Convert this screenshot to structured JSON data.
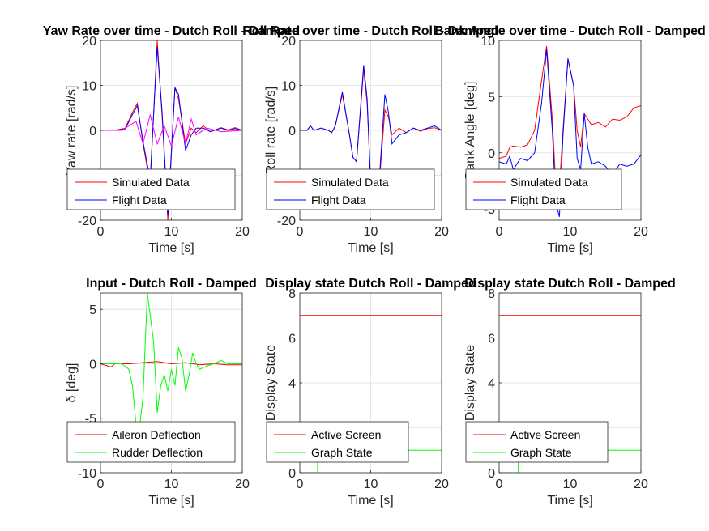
{
  "chart_data": [
    {
      "type": "line",
      "title": "Yaw Rate over time - Dutch Roll - Damped",
      "xlabel": "Time [s]",
      "ylabel": "Yaw rate [rad/s]",
      "xlim": [
        0,
        20
      ],
      "ylim": [
        -20,
        20
      ],
      "xticks": [
        0,
        10,
        20
      ],
      "yticks": [
        -20,
        -10,
        0,
        10,
        20
      ],
      "grid": true,
      "legend": {
        "position": "bottom",
        "entries": [
          "Simulated Data",
          "Flight Data"
        ]
      },
      "series": [
        {
          "name": "Simulated Data",
          "color": "#ff0000",
          "x": [
            0,
            2,
            3.5,
            4.5,
            5.2,
            6,
            7,
            8,
            8.7,
            9.5,
            10.5,
            11,
            12,
            12.8,
            13.5,
            14.5,
            15.5,
            17,
            18,
            19,
            20
          ],
          "y": [
            0,
            0,
            0.5,
            4,
            6,
            -3,
            -12,
            20,
            3,
            -20,
            9.5,
            7,
            -3,
            0.5,
            -0.5,
            1,
            -0.3,
            0.6,
            0.1,
            0.6,
            0
          ]
        },
        {
          "name": "Flight Data",
          "color": "#0000ff",
          "x": [
            0,
            2,
            3.5,
            4.5,
            5.2,
            6,
            7,
            8,
            8.7,
            9.5,
            10.5,
            11,
            12,
            12.8,
            13.5,
            14.5,
            15.5,
            17,
            18,
            19,
            20
          ],
          "y": [
            0,
            0,
            0.3,
            3.5,
            5.5,
            -2.5,
            -11,
            18.5,
            4,
            -19,
            9.5,
            8,
            -4.5,
            -1,
            0.5,
            0.5,
            -0.3,
            0.5,
            0,
            0.4,
            0
          ]
        },
        {
          "name": "",
          "color": "#ff00ff",
          "x": [
            0,
            3,
            4,
            5,
            6,
            7,
            8,
            9,
            10,
            11,
            12,
            12.8,
            13.5,
            15,
            17,
            20
          ],
          "y": [
            0,
            0,
            1,
            2,
            -3,
            3.5,
            -3,
            1,
            -3.5,
            3,
            -3,
            2.5,
            -1,
            0.5,
            -0.3,
            0
          ]
        }
      ]
    },
    {
      "type": "line",
      "title": "Roll Rate over time - Dutch Roll - Damped",
      "xlabel": "Time [s]",
      "ylabel": "Roll rate [rad/s]",
      "xlim": [
        0,
        20
      ],
      "ylim": [
        -20,
        20
      ],
      "xticks": [
        0,
        10,
        20
      ],
      "yticks": [
        -20,
        -10,
        0,
        10,
        20
      ],
      "grid": true,
      "legend": {
        "position": "bottom",
        "entries": [
          "Simulated Data",
          "Flight Data"
        ]
      },
      "series": [
        {
          "name": "Simulated Data",
          "color": "#ff0000",
          "x": [
            0,
            1,
            1.5,
            2,
            3,
            4,
            4.5,
            5,
            6,
            7,
            7.5,
            8,
            9,
            9.5,
            10,
            11,
            12,
            12.5,
            13,
            14,
            15,
            16,
            17,
            18,
            19,
            20
          ],
          "y": [
            0,
            0,
            1,
            0,
            0.5,
            0,
            -0.5,
            1,
            8,
            -1,
            -6,
            -7,
            13.5,
            6,
            -12,
            -16,
            4.5,
            3,
            -1,
            0.5,
            -0.5,
            0.5,
            -0.2,
            0.4,
            0.6,
            0
          ]
        },
        {
          "name": "Flight Data",
          "color": "#0000ff",
          "x": [
            0,
            1,
            1.5,
            2,
            3,
            4,
            4.5,
            5,
            6,
            7,
            7.5,
            8,
            9,
            9.5,
            10,
            11,
            12,
            12.5,
            13,
            14,
            15,
            16,
            17,
            18,
            19,
            20
          ],
          "y": [
            0,
            0,
            1,
            0,
            0.5,
            0,
            -0.5,
            1,
            8.5,
            -1,
            -6,
            -7,
            14.5,
            7,
            -12,
            -16,
            8,
            4,
            -3,
            -1,
            -0.5,
            0.5,
            0,
            0.5,
            1,
            0
          ]
        }
      ]
    },
    {
      "type": "line",
      "title": "Bank Angle over time - Dutch Roll - Damped",
      "xlabel": "Time [s]",
      "ylabel": "Bank Angle [deg]",
      "xlim": [
        0,
        20
      ],
      "ylim": [
        -6,
        10
      ],
      "xticks": [
        0,
        10,
        20
      ],
      "yticks": [
        -5,
        0,
        5,
        10
      ],
      "grid": true,
      "legend": {
        "position": "bottom",
        "entries": [
          "Simulated Data",
          "Flight Data"
        ]
      },
      "series": [
        {
          "name": "Simulated Data",
          "color": "#ff0000",
          "x": [
            0,
            1,
            1.5,
            2,
            3,
            4,
            5,
            6,
            6.7,
            7.5,
            8,
            8.5,
            9,
            9.7,
            10.5,
            11,
            11.5,
            12,
            12.5,
            13,
            14,
            15,
            16,
            17,
            18,
            19,
            20
          ],
          "y": [
            -0.5,
            -0.3,
            0.5,
            0.6,
            0.5,
            0.7,
            2,
            6.5,
            9.5,
            3,
            -3,
            -3,
            2,
            8.3,
            6,
            2,
            0.5,
            3.5,
            3,
            2.5,
            2.7,
            2.3,
            3,
            2.9,
            3.2,
            4,
            4.2
          ]
        },
        {
          "name": "Flight Data",
          "color": "#0000ff",
          "x": [
            0,
            1,
            1.5,
            2,
            3,
            4,
            5,
            6,
            6.7,
            7.5,
            8,
            8.5,
            9,
            9.7,
            10.5,
            11,
            11.5,
            12,
            12.5,
            13,
            14,
            15,
            16,
            17,
            18,
            19,
            20
          ],
          "y": [
            -0.8,
            -1,
            -0.3,
            -1.5,
            -0.5,
            -0.7,
            0,
            4.5,
            9.2,
            2,
            -4.5,
            -5.7,
            1.5,
            8.4,
            6,
            -0.5,
            -1.5,
            3.5,
            0.5,
            -1,
            -0.8,
            -1.2,
            -2,
            -1,
            -1.2,
            -1,
            -0.2
          ]
        }
      ]
    },
    {
      "type": "line",
      "title": "Input - Dutch Roll - Damped",
      "xlabel": "Time [s]",
      "ylabel": "δ [deg]",
      "xlim": [
        0,
        20
      ],
      "ylim": [
        -10,
        6.5
      ],
      "xticks": [
        0,
        10,
        20
      ],
      "yticks": [
        -10,
        -5,
        0,
        5
      ],
      "grid": true,
      "legend": {
        "position": "bottom",
        "entries": [
          "Aileron Deflection",
          "Rudder Deflection"
        ]
      },
      "series": [
        {
          "name": "Aileron Deflection",
          "color": "#ff0000",
          "x": [
            0,
            1,
            1.5,
            2,
            4,
            6,
            8,
            10,
            12,
            14,
            16,
            18,
            20
          ],
          "y": [
            0,
            -0.2,
            -0.3,
            0,
            0,
            0.1,
            0.2,
            0,
            0.1,
            -0.1,
            0,
            -0.1,
            -0.1
          ]
        },
        {
          "name": "Rudder Deflection",
          "color": "#00ff00",
          "x": [
            0,
            3,
            4,
            4.5,
            5,
            5.5,
            6,
            6.6,
            7.5,
            8,
            8.5,
            9,
            9.5,
            10,
            10.5,
            11,
            11.5,
            12,
            12.5,
            13,
            13.5,
            14,
            15,
            16,
            17,
            18,
            20
          ],
          "y": [
            0,
            0,
            -0.5,
            -2,
            -5.5,
            -6,
            -3,
            6.5,
            2,
            -4.5,
            -2,
            -1,
            -2.5,
            -0.5,
            -2,
            1.5,
            0.5,
            -2.5,
            -1,
            1,
            0,
            -0.5,
            -0.2,
            0,
            0.3,
            0,
            0
          ]
        }
      ]
    },
    {
      "type": "line",
      "title": "Display state Dutch Roll - Damped",
      "xlabel": "Time [s]",
      "ylabel": "Display State",
      "xlim": [
        0,
        20
      ],
      "ylim": [
        0,
        8
      ],
      "xticks": [
        0,
        10,
        20
      ],
      "yticks": [
        0,
        2,
        4,
        6,
        8
      ],
      "grid": true,
      "legend": {
        "position": "bottom",
        "entries": [
          "Active Screen",
          "Graph State"
        ]
      },
      "series": [
        {
          "name": "Active Screen",
          "color": "#ff0000",
          "x": [
            0,
            20
          ],
          "y": [
            7,
            7
          ]
        },
        {
          "name": "Graph State",
          "color": "#00ff00",
          "x": [
            0,
            2.5,
            2.5,
            20
          ],
          "y": [
            0,
            0,
            1,
            1
          ]
        }
      ]
    },
    {
      "type": "line",
      "title": "Display state Dutch Roll - Damped",
      "xlabel": "Time [s]",
      "ylabel": "Display State",
      "xlim": [
        0,
        20
      ],
      "ylim": [
        0,
        8
      ],
      "xticks": [
        0,
        10,
        20
      ],
      "yticks": [
        0,
        2,
        4,
        6,
        8
      ],
      "grid": true,
      "legend": {
        "position": "bottom",
        "entries": [
          "Active Screen",
          "Graph State"
        ]
      },
      "series": [
        {
          "name": "Active Screen",
          "color": "#ff0000",
          "x": [
            0,
            20
          ],
          "y": [
            7,
            7
          ]
        },
        {
          "name": "Graph State",
          "color": "#00ff00",
          "x": [
            0,
            2.7,
            2.7,
            20
          ],
          "y": [
            0,
            0,
            1,
            1
          ]
        }
      ]
    }
  ]
}
